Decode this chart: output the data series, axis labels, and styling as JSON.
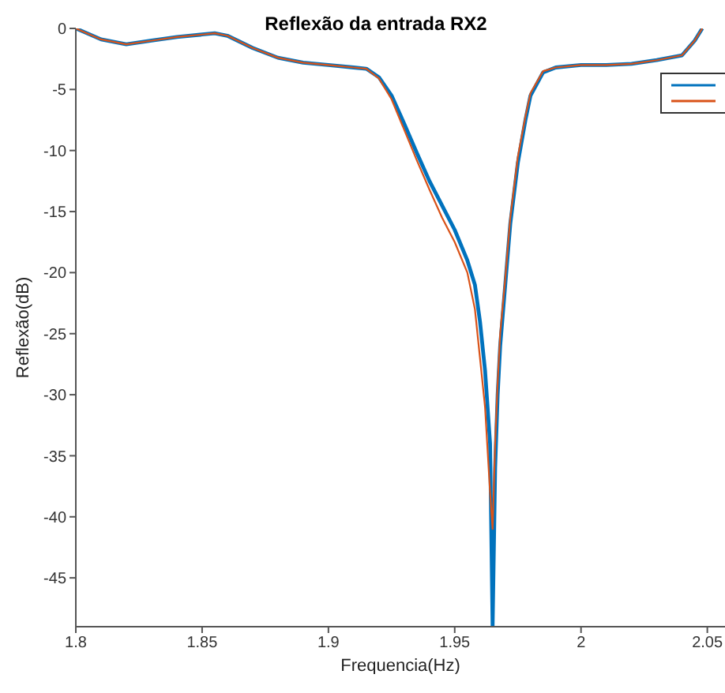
{
  "chart_data": {
    "type": "line",
    "title": "Reflexão da entrada RX2",
    "xlabel": "Frequencia(Hz)",
    "ylabel": "Reflexão(dB)",
    "xlim": [
      1.8,
      2.057
    ],
    "xticks": [
      1.8,
      1.85,
      1.9,
      1.95,
      2,
      2.05
    ],
    "ylim": [
      -49,
      0
    ],
    "yticks": [
      0,
      -5,
      -10,
      -15,
      -20,
      -25,
      -30,
      -35,
      -40,
      -45
    ],
    "grid": false,
    "marker": "none",
    "line_style": "solid",
    "series": [
      {
        "color": "#0072bd",
        "x": [
          1.8,
          1.81,
          1.82,
          1.83,
          1.84,
          1.85,
          1.855,
          1.86,
          1.87,
          1.88,
          1.89,
          1.9,
          1.91,
          1.915,
          1.92,
          1.925,
          1.93,
          1.935,
          1.94,
          1.945,
          1.95,
          1.955,
          1.958,
          1.96,
          1.962,
          1.964,
          1.965,
          1.966,
          1.967,
          1.968,
          1.97,
          1.972,
          1.975,
          1.978,
          1.98,
          1.985,
          1.99,
          2,
          2.01,
          2.02,
          2.03,
          2.04,
          2.045,
          2.048
        ],
        "values": [
          0,
          -0.9,
          -1.3,
          -1.0,
          -0.7,
          -0.5,
          -0.4,
          -0.6,
          -1.6,
          -2.4,
          -2.8,
          -3.0,
          -3.2,
          -3.3,
          -4.0,
          -5.5,
          -7.8,
          -10.2,
          -12.5,
          -14.5,
          -16.5,
          -19,
          -21,
          -24,
          -28,
          -34,
          -49,
          -36,
          -30,
          -26,
          -21,
          -16,
          -11,
          -7.5,
          -5.5,
          -3.6,
          -3.2,
          -3.0,
          -3.0,
          -2.9,
          -2.6,
          -2.2,
          -1.0,
          0
        ]
      },
      {
        "color": "#d95319",
        "x": [
          1.8,
          1.81,
          1.82,
          1.83,
          1.84,
          1.85,
          1.855,
          1.86,
          1.87,
          1.88,
          1.89,
          1.9,
          1.91,
          1.915,
          1.92,
          1.925,
          1.93,
          1.935,
          1.94,
          1.945,
          1.95,
          1.955,
          1.958,
          1.96,
          1.962,
          1.964,
          1.965,
          1.966,
          1.967,
          1.968,
          1.97,
          1.972,
          1.975,
          1.978,
          1.98,
          1.985,
          1.99,
          2,
          2.01,
          2.02,
          2.03,
          2.04,
          2.045,
          2.048
        ],
        "values": [
          0,
          -0.9,
          -1.3,
          -1.0,
          -0.7,
          -0.5,
          -0.4,
          -0.6,
          -1.6,
          -2.4,
          -2.8,
          -3.0,
          -3.2,
          -3.3,
          -4.1,
          -5.8,
          -8.3,
          -10.8,
          -13.2,
          -15.5,
          -17.5,
          -20,
          -23,
          -27,
          -31,
          -38,
          -41,
          -34,
          -29,
          -25,
          -20.5,
          -15.5,
          -10.5,
          -7.2,
          -5.3,
          -3.5,
          -3.2,
          -3.0,
          -3.0,
          -2.9,
          -2.6,
          -2.2,
          -1.0,
          0
        ]
      }
    ]
  }
}
